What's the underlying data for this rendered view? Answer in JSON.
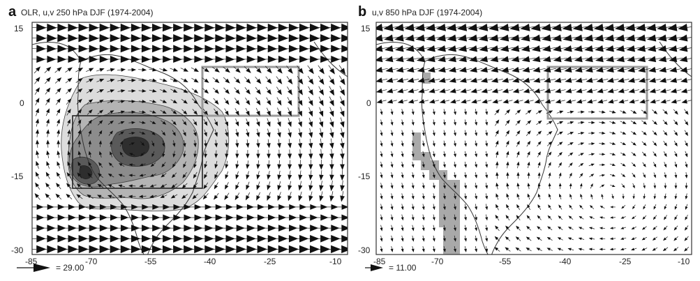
{
  "panels": [
    {
      "letter": "a",
      "title": "OLR, u,v 250 hPa DJF (1974-2004)",
      "reference_vector_label": "= 29.00",
      "x_ticks": [
        "-85",
        "-70",
        "-55",
        "-40",
        "-25",
        "-10"
      ],
      "y_ticks": [
        "15",
        "0",
        "-15",
        "-30"
      ],
      "lon_range": [
        -85,
        -9
      ],
      "lat_range": [
        -31,
        16
      ],
      "colors": {
        "land_outline": "#333333",
        "arrow": "#111111",
        "box_gray": "#9a9a9a",
        "box_dark": "#222222"
      }
    },
    {
      "letter": "b",
      "title": "u,v 850 hPa DJF (1974-2004)",
      "reference_vector_label": "= 11.00",
      "x_ticks": [
        "-85",
        "-70",
        "-55",
        "-40",
        "-25",
        "-10"
      ],
      "y_ticks": [
        "15",
        "0",
        "-15",
        "-30"
      ],
      "lon_range": [
        -85,
        -9
      ],
      "lat_range": [
        -31,
        16
      ],
      "colors": {
        "land_outline": "#333333",
        "arrow": "#111111",
        "box_gray": "#9a9a9a",
        "andes_mask": "#a9a9a9"
      }
    }
  ],
  "olr_shading_colors": [
    "#dcdcdc",
    "#b4b4b4",
    "#8c8c8c",
    "#5a5a5a",
    "#2e2e2e"
  ]
}
